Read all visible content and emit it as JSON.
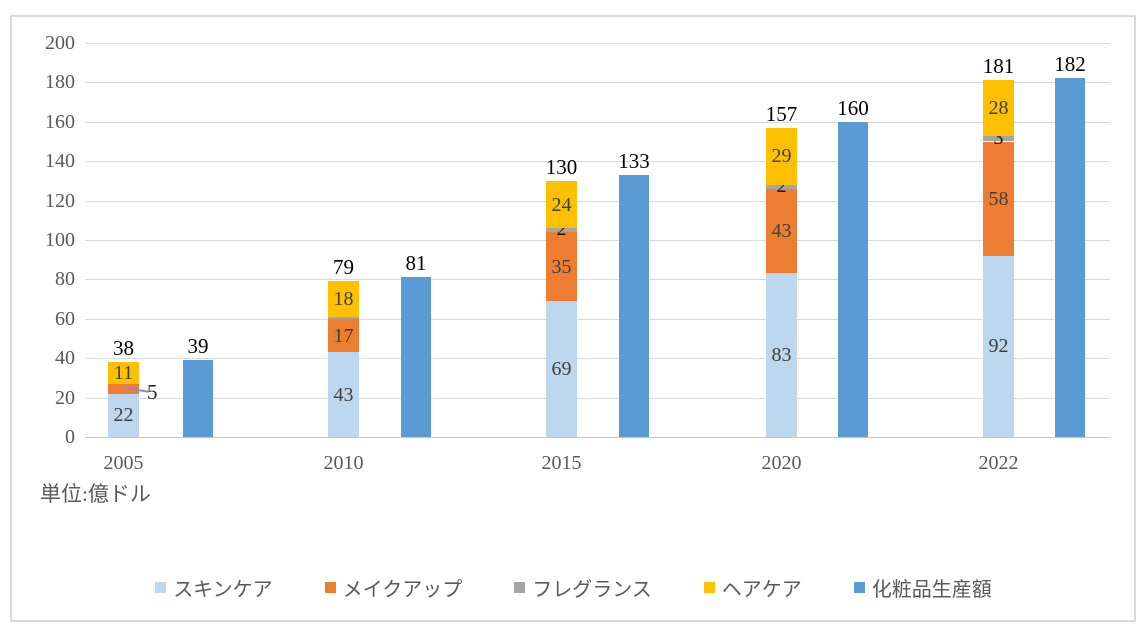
{
  "chart_data": {
    "type": "bar",
    "subtype": "stacked-plus-grouped-combo",
    "unit_label": "単位:億ドル",
    "categories": [
      "2005",
      "2010",
      "2015",
      "2020",
      "2022"
    ],
    "stacked_series": [
      {
        "name": "スキンケア",
        "color": "#BDD7EE",
        "values": [
          22,
          43,
          69,
          83,
          92
        ],
        "labels": [
          "22",
          "43",
          "69",
          "83",
          "92"
        ]
      },
      {
        "name": "メイクアップ",
        "color": "#ED7D31",
        "values": [
          5,
          17,
          35,
          43,
          58
        ],
        "labels": [
          "5",
          "17",
          "35",
          "43",
          "58"
        ]
      },
      {
        "name": "フレグランス",
        "color": "#A5A5A5",
        "values": [
          0,
          1,
          2,
          2,
          3
        ],
        "labels": [
          null,
          null,
          "2",
          "2",
          "3"
        ]
      },
      {
        "name": "ヘアケア",
        "color": "#FFC000",
        "values": [
          11,
          18,
          24,
          29,
          28
        ],
        "labels": [
          "11",
          "18",
          "24",
          "29",
          "28"
        ]
      }
    ],
    "stacked_totals": [
      "38",
      "79",
      "130",
      "157",
      "181"
    ],
    "bar_series": {
      "name": "化粧品生産額",
      "color": "#5B9BD5",
      "values": [
        39,
        81,
        133,
        160,
        182
      ],
      "labels": [
        "39",
        "81",
        "133",
        "160",
        "182"
      ]
    },
    "ylim": [
      0,
      200
    ],
    "ytick_step": 20,
    "ytick_labels": [
      "0",
      "20",
      "40",
      "60",
      "80",
      "100",
      "120",
      "140",
      "160",
      "180",
      "200"
    ],
    "grid": true,
    "legend_position": "bottom",
    "colors": {
      "grid": "#D9D9D9",
      "axis_text": "#595959",
      "segment_label": "#404040",
      "total_label": "#000000",
      "frame_border": "#D9D9D9"
    }
  }
}
